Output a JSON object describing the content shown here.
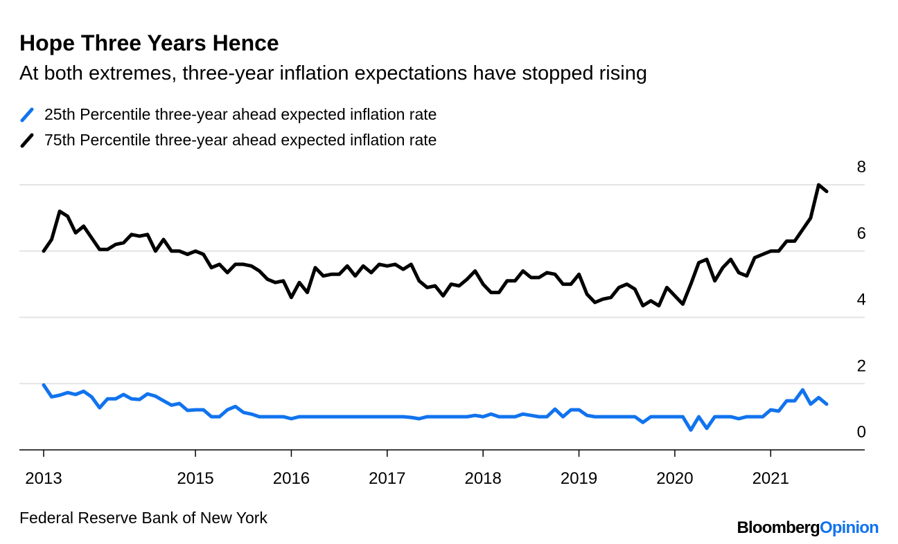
{
  "chart_data": {
    "type": "line",
    "title": "Hope Three Years Hence",
    "subtitle": "At both extremes, three-year inflation expectations have stopped rising",
    "source": "Federal Reserve Bank of New York",
    "brand": [
      "Bloomberg",
      "Opinion"
    ],
    "categories": [
      "2013",
      null,
      null,
      null,
      null,
      null,
      null,
      null,
      null,
      null,
      null,
      null,
      null,
      null,
      null,
      null,
      null,
      null,
      null,
      "2015",
      null,
      null,
      null,
      null,
      null,
      null,
      null,
      null,
      null,
      null,
      null,
      "2016",
      null,
      null,
      null,
      null,
      null,
      null,
      null,
      null,
      null,
      null,
      null,
      "2017",
      null,
      null,
      null,
      null,
      null,
      null,
      null,
      null,
      null,
      null,
      null,
      "2018",
      null,
      null,
      null,
      null,
      null,
      null,
      null,
      null,
      null,
      null,
      null,
      "2019",
      null,
      null,
      null,
      null,
      null,
      null,
      null,
      null,
      null,
      null,
      null,
      "2020",
      null,
      null,
      null,
      null,
      null,
      null,
      null,
      null,
      null,
      null,
      null,
      "2021",
      null,
      null,
      null,
      null,
      null,
      null,
      null
    ],
    "series": [
      {
        "name": "25th Percentile three-year ahead expected inflation rate",
        "color": "#1173ee",
        "values": [
          1.96,
          1.6,
          1.65,
          1.73,
          1.67,
          1.77,
          1.6,
          1.27,
          1.54,
          1.54,
          1.67,
          1.54,
          1.52,
          1.69,
          1.62,
          1.48,
          1.35,
          1.4,
          1.19,
          1.21,
          1.21,
          1.0,
          1.0,
          1.21,
          1.31,
          1.13,
          1.08,
          1.0,
          1.0,
          1.0,
          1.0,
          0.94,
          1.0,
          1.0,
          1.0,
          1.0,
          1.0,
          1.0,
          1.0,
          1.0,
          1.0,
          1.0,
          1.0,
          1.0,
          1.0,
          1.0,
          0.98,
          0.94,
          1.0,
          1.0,
          1.0,
          1.0,
          1.0,
          1.0,
          1.04,
          1.0,
          1.08,
          1.0,
          1.0,
          1.0,
          1.08,
          1.04,
          1.0,
          1.0,
          1.23,
          1.0,
          1.21,
          1.21,
          1.04,
          1.0,
          1.0,
          1.0,
          1.0,
          1.0,
          1.0,
          0.83,
          1.0,
          1.0,
          1.0,
          1.0,
          1.0,
          0.6,
          1.0,
          0.65,
          1.0,
          1.0,
          1.0,
          0.94,
          1.0,
          1.0,
          1.0,
          1.21,
          1.17,
          1.48,
          1.48,
          1.81,
          1.38,
          1.58,
          1.38
        ]
      },
      {
        "name": "75th Percentile three-year ahead expected inflation rate",
        "color": "#000000",
        "values": [
          6.0,
          6.35,
          7.2,
          7.05,
          6.55,
          6.75,
          6.4,
          6.05,
          6.05,
          6.2,
          6.25,
          6.5,
          6.45,
          6.5,
          6.0,
          6.35,
          6.0,
          6.0,
          5.9,
          6.0,
          5.9,
          5.5,
          5.6,
          5.35,
          5.6,
          5.6,
          5.55,
          5.4,
          5.15,
          5.05,
          5.1,
          4.6,
          5.05,
          4.75,
          5.5,
          5.25,
          5.3,
          5.3,
          5.55,
          5.25,
          5.55,
          5.35,
          5.6,
          5.55,
          5.6,
          5.45,
          5.6,
          5.1,
          4.9,
          4.95,
          4.65,
          5.0,
          4.95,
          5.15,
          5.4,
          5.0,
          4.75,
          4.75,
          5.1,
          5.1,
          5.4,
          5.2,
          5.2,
          5.35,
          5.3,
          5.0,
          5.0,
          5.3,
          4.7,
          4.45,
          4.55,
          4.6,
          4.9,
          5.0,
          4.85,
          4.35,
          4.5,
          4.35,
          4.9,
          4.65,
          4.4,
          5.0,
          5.65,
          5.75,
          5.1,
          5.5,
          5.75,
          5.35,
          5.25,
          5.8,
          5.9,
          6.0,
          6.0,
          6.3,
          6.3,
          6.65,
          7.0,
          8.0,
          7.8
        ]
      }
    ],
    "ylim": [
      0,
      8
    ],
    "yticks": [
      0,
      2,
      4,
      6,
      8
    ],
    "grid": true
  }
}
